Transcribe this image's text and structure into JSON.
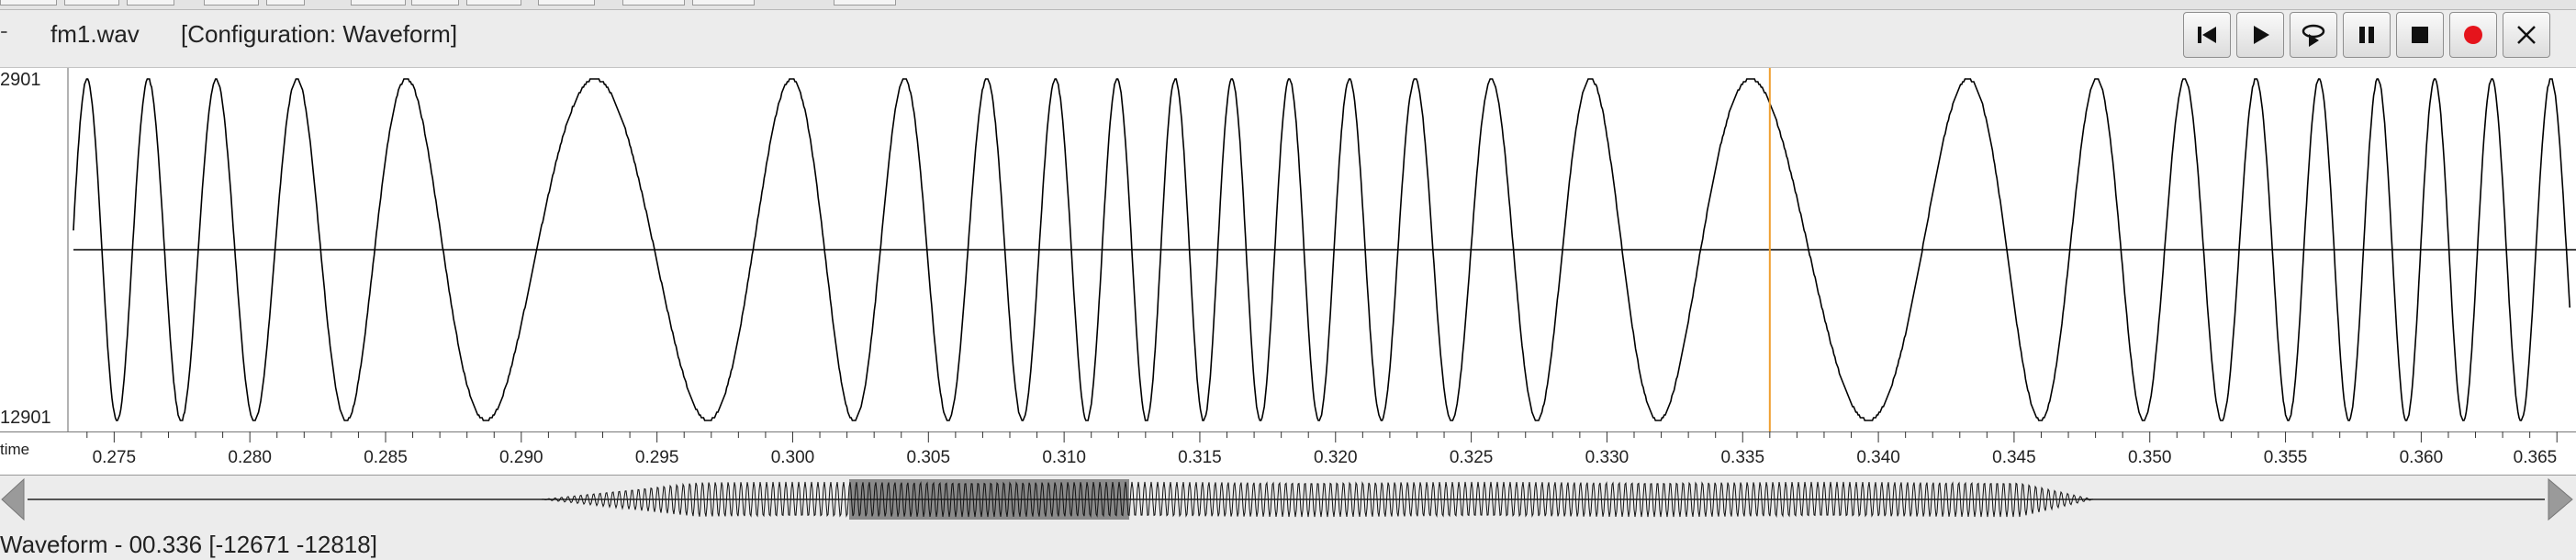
{
  "header": {
    "file_name": "fm1.wav",
    "configuration": "[Configuration: Waveform]",
    "close_glyph": "-"
  },
  "controls": [
    {
      "name": "skip-to-start-button",
      "icon": "skip-back-icon"
    },
    {
      "name": "play-button",
      "icon": "play-icon"
    },
    {
      "name": "loop-play-button",
      "icon": "loop-icon"
    },
    {
      "name": "pause-button",
      "icon": "pause-icon"
    },
    {
      "name": "stop-button",
      "icon": "stop-icon"
    },
    {
      "name": "record-button",
      "icon": "record-icon",
      "color": "#e5141c"
    },
    {
      "name": "close-button",
      "icon": "close-icon"
    }
  ],
  "waveform": {
    "y_max_label": "2901",
    "y_min_label": "12901",
    "time_label": "time",
    "x_range": [
      0.2735,
      0.3655
    ],
    "tick_labels": [
      "0.275",
      "0.280",
      "0.285",
      "0.290",
      "0.295",
      "0.300",
      "0.305",
      "0.310",
      "0.315",
      "0.320",
      "0.325",
      "0.330",
      "0.335",
      "0.340",
      "0.345",
      "0.350",
      "0.355",
      "0.360",
      "0.365"
    ],
    "cursor_time": 0.336,
    "cursor_color": "#f0a030",
    "wave_color": "#000000",
    "selection": [
      0.3,
      0.335
    ]
  },
  "status": {
    "text": "Waveform - 00.336 [-12671 -12818]"
  }
}
